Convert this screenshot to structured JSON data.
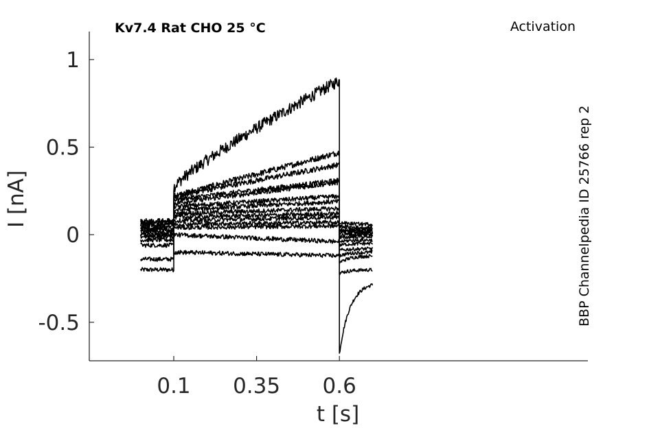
{
  "chart_data": {
    "type": "line",
    "title": "Kv7.4  Rat  CHO  25 °C",
    "annotation_right": "Activation",
    "annotation_vertical": "BBP Channelpedia ID 25766 rep 2",
    "xlabel": "t [s]",
    "ylabel": "I [nA]",
    "xlim": [
      -0.155,
      1.35
    ],
    "ylim": [
      -0.72,
      1.16
    ],
    "x_ticks": [
      0.1,
      0.35,
      0.6
    ],
    "x_tick_labels": [
      "0.1",
      "0.35",
      "0.6"
    ],
    "y_ticks": [
      1,
      0.5,
      0,
      -0.5
    ],
    "y_tick_labels": [
      "1",
      "0.5",
      "0",
      "-0.5"
    ],
    "grid": false,
    "legend": "none",
    "protocol": {
      "t_start": 0.0,
      "t_on": 0.1,
      "t_off": 0.6,
      "t_end": 0.7
    },
    "series": [
      {
        "baseline": -0.2,
        "step_start": 0.27,
        "step_end": 0.88,
        "tail_peak": -0.68,
        "tail_end": -0.27
      },
      {
        "baseline": -0.14,
        "step_start": 0.22,
        "step_end": 0.47,
        "tail_peak": -0.22,
        "tail_end": -0.2
      },
      {
        "baseline": -0.06,
        "step_start": 0.22,
        "step_end": 0.4,
        "tail_peak": -0.16,
        "tail_end": -0.12
      },
      {
        "baseline": -0.03,
        "step_start": 0.2,
        "step_end": 0.31,
        "tail_peak": -0.12,
        "tail_end": -0.1
      },
      {
        "baseline": -0.01,
        "step_start": 0.18,
        "step_end": 0.3,
        "tail_peak": -0.09,
        "tail_end": -0.08
      },
      {
        "baseline": 0.0,
        "step_start": 0.16,
        "step_end": 0.22,
        "tail_peak": -0.06,
        "tail_end": -0.05
      },
      {
        "baseline": 0.01,
        "step_start": 0.14,
        "step_end": 0.19,
        "tail_peak": -0.04,
        "tail_end": -0.03
      },
      {
        "baseline": 0.02,
        "step_start": 0.12,
        "step_end": 0.15,
        "tail_peak": -0.02,
        "tail_end": -0.01
      },
      {
        "baseline": 0.03,
        "step_start": 0.1,
        "step_end": 0.12,
        "tail_peak": 0.0,
        "tail_end": 0.0
      },
      {
        "baseline": 0.04,
        "step_start": 0.08,
        "step_end": 0.1,
        "tail_peak": 0.01,
        "tail_end": 0.01
      },
      {
        "baseline": 0.05,
        "step_start": 0.06,
        "step_end": 0.07,
        "tail_peak": 0.02,
        "tail_end": 0.02
      },
      {
        "baseline": 0.06,
        "step_start": 0.04,
        "step_end": 0.05,
        "tail_peak": 0.03,
        "tail_end": 0.03
      },
      {
        "baseline": 0.07,
        "step_start": 0.0,
        "step_end": -0.04,
        "tail_peak": 0.05,
        "tail_end": 0.04
      },
      {
        "baseline": 0.08,
        "step_start": -0.1,
        "step_end": -0.12,
        "tail_peak": 0.07,
        "tail_end": 0.06
      }
    ]
  }
}
